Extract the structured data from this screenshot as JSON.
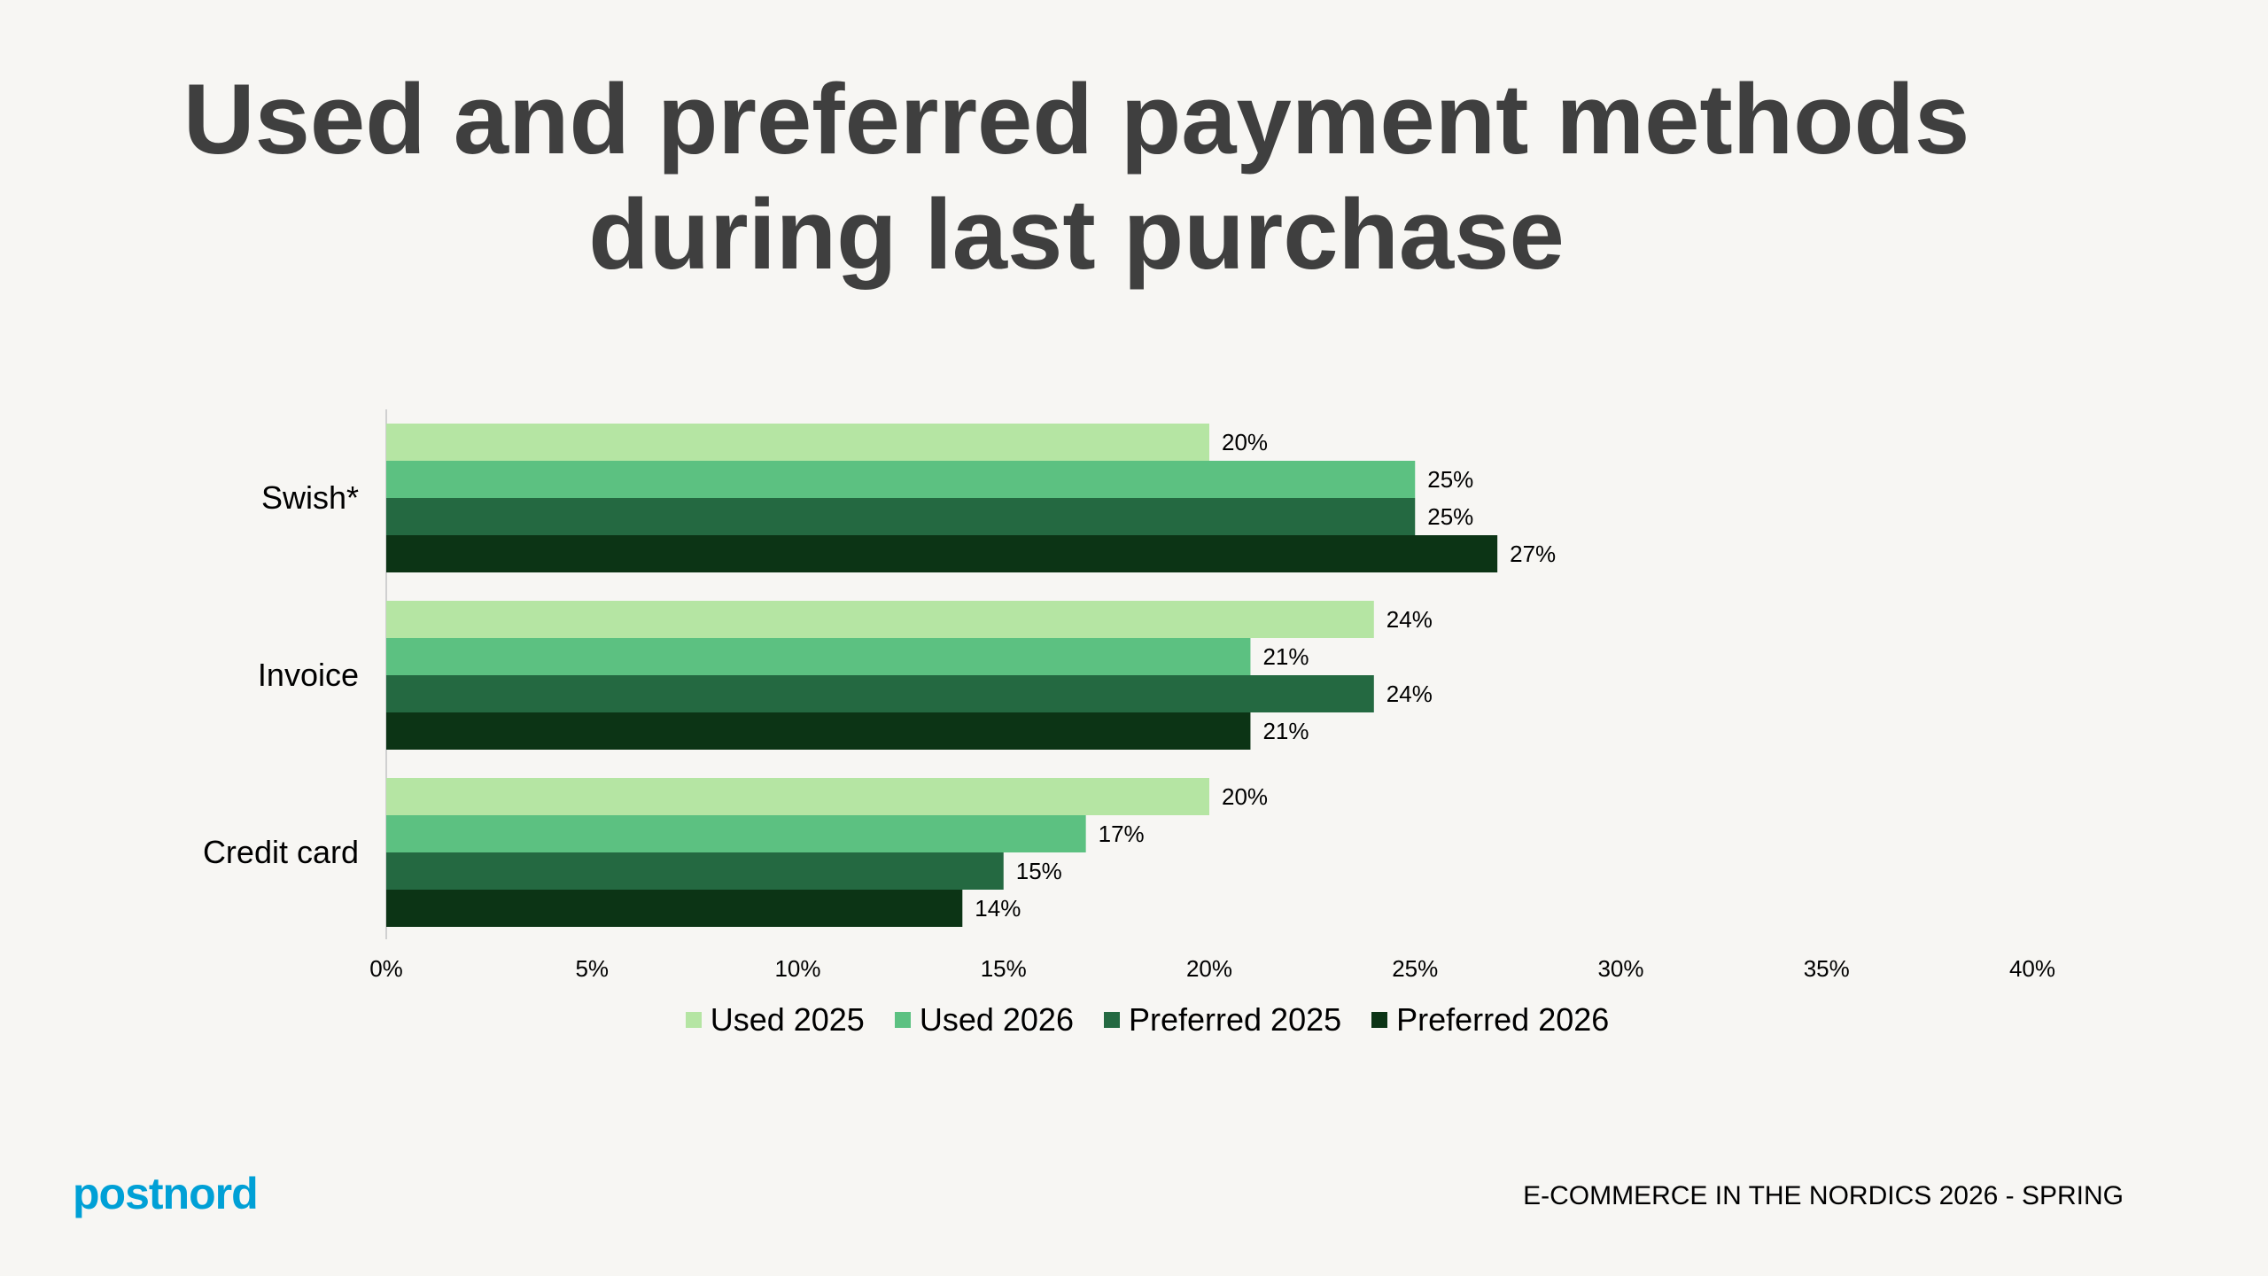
{
  "chart_data": {
    "type": "bar",
    "orientation": "horizontal",
    "title": "Used and preferred payment methods during last purchase",
    "categories": [
      "Swish*",
      "Invoice",
      "Credit card"
    ],
    "series": [
      {
        "name": "Used 2025",
        "values": [
          20,
          24,
          20
        ],
        "color": "#b5e5a3"
      },
      {
        "name": "Used 2026",
        "values": [
          25,
          21,
          17
        ],
        "color": "#5cc181"
      },
      {
        "name": "Preferred 2025",
        "values": [
          25,
          24,
          15
        ],
        "color": "#246941"
      },
      {
        "name": "Preferred 2026",
        "values": [
          27,
          21,
          14
        ],
        "color": "#0c3415"
      }
    ],
    "xlim": [
      0,
      40
    ],
    "xticks": [
      "0%",
      "5%",
      "10%",
      "15%",
      "20%",
      "25%",
      "30%",
      "35%",
      "40%"
    ],
    "value_suffix": "%",
    "grid": false,
    "legend_position": "bottom"
  },
  "logo": "postnord",
  "footer": "E-COMMERCE IN THE NORDICS 2026 - SPRING"
}
